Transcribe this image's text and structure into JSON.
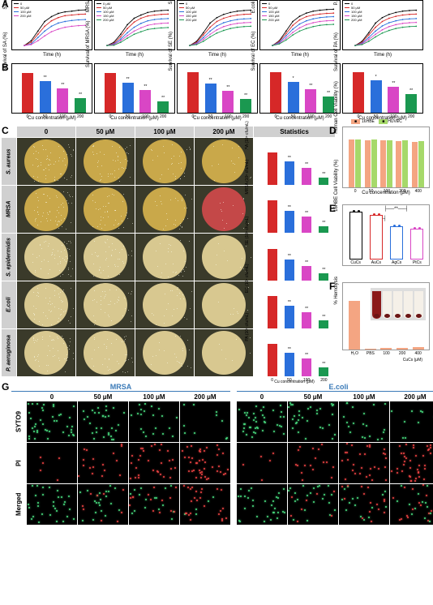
{
  "colors": {
    "c0": "#000000",
    "c50": "#d62828",
    "c100": "#2a6fdb",
    "c150": "#d946c5",
    "c200": "#1a9850"
  },
  "panelA": {
    "label": "A",
    "charts": [
      {
        "ylabel": "S.aureus OD600",
        "xlabel": "Time (h)",
        "legend": [
          "0",
          "50 μM",
          "100 μM",
          "200 μM"
        ],
        "curves": [
          [
            0.05,
            0.2,
            0.5,
            0.8,
            0.95,
            1.05,
            1.1,
            1.12,
            1.15,
            1.16
          ],
          [
            0.05,
            0.15,
            0.4,
            0.65,
            0.82,
            0.92,
            0.98,
            1.0,
            1.02,
            1.03
          ],
          [
            0.05,
            0.1,
            0.3,
            0.5,
            0.65,
            0.75,
            0.8,
            0.83,
            0.85,
            0.86
          ],
          [
            0.05,
            0.08,
            0.2,
            0.35,
            0.48,
            0.56,
            0.62,
            0.65,
            0.67,
            0.68
          ]
        ]
      },
      {
        "ylabel": "MRSA OD600",
        "xlabel": "Time (h)",
        "legend": [
          "0 μM",
          "50 μM",
          "100 μM",
          "150 μM",
          "200 μM"
        ],
        "curves": [
          [
            0.05,
            0.15,
            0.4,
            0.7,
            0.9,
            1.0,
            1.08,
            1.12,
            1.14,
            1.15
          ],
          [
            0.05,
            0.12,
            0.32,
            0.58,
            0.78,
            0.9,
            0.97,
            1.0,
            1.02,
            1.03
          ],
          [
            0.05,
            0.1,
            0.25,
            0.45,
            0.62,
            0.74,
            0.82,
            0.86,
            0.88,
            0.89
          ],
          [
            0.05,
            0.08,
            0.2,
            0.36,
            0.5,
            0.6,
            0.68,
            0.72,
            0.74,
            0.75
          ],
          [
            0.05,
            0.06,
            0.15,
            0.28,
            0.4,
            0.48,
            0.55,
            0.58,
            0.6,
            0.61
          ]
        ]
      },
      {
        "ylabel": "S.epidermidis OD600",
        "xlabel": "Time (h)",
        "legend": [
          "0",
          "50 μM",
          "100 μM",
          "150 μM",
          "200 μM"
        ],
        "curves": [
          [
            0.05,
            0.18,
            0.45,
            0.75,
            0.92,
            1.02,
            1.08,
            1.12,
            1.14,
            1.15
          ],
          [
            0.05,
            0.15,
            0.38,
            0.62,
            0.8,
            0.9,
            0.96,
            1.0,
            1.02,
            1.03
          ],
          [
            0.05,
            0.12,
            0.3,
            0.5,
            0.66,
            0.76,
            0.82,
            0.86,
            0.88,
            0.89
          ],
          [
            0.05,
            0.1,
            0.24,
            0.4,
            0.54,
            0.64,
            0.7,
            0.74,
            0.76,
            0.77
          ],
          [
            0.05,
            0.08,
            0.18,
            0.32,
            0.44,
            0.52,
            0.58,
            0.62,
            0.64,
            0.65
          ]
        ]
      },
      {
        "ylabel": "E.coli OD600",
        "xlabel": "Time (h)",
        "legend": [
          "0",
          "50 μM",
          "100 μM",
          "150 μM",
          "200 μM"
        ],
        "curves": [
          [
            0.05,
            0.2,
            0.5,
            0.8,
            0.96,
            1.06,
            1.12,
            1.15,
            1.17,
            1.18
          ],
          [
            0.05,
            0.18,
            0.42,
            0.68,
            0.85,
            0.95,
            1.0,
            1.03,
            1.05,
            1.06
          ],
          [
            0.05,
            0.15,
            0.35,
            0.56,
            0.72,
            0.82,
            0.88,
            0.92,
            0.94,
            0.95
          ],
          [
            0.05,
            0.12,
            0.28,
            0.46,
            0.6,
            0.7,
            0.76,
            0.8,
            0.82,
            0.83
          ],
          [
            0.05,
            0.1,
            0.22,
            0.38,
            0.5,
            0.58,
            0.64,
            0.68,
            0.7,
            0.71
          ]
        ]
      },
      {
        "ylabel": "P.aeruginosa OD600",
        "xlabel": "Time (h)",
        "legend": [
          "0",
          "50 μM",
          "100 μM",
          "150 μM",
          "200 μM"
        ],
        "curves": [
          [
            0.05,
            0.18,
            0.45,
            0.75,
            0.92,
            1.02,
            1.08,
            1.12,
            1.14,
            1.15
          ],
          [
            0.05,
            0.15,
            0.38,
            0.62,
            0.8,
            0.9,
            0.96,
            1.0,
            1.02,
            1.03
          ],
          [
            0.05,
            0.12,
            0.3,
            0.5,
            0.66,
            0.76,
            0.82,
            0.86,
            0.88,
            0.89
          ],
          [
            0.05,
            0.1,
            0.24,
            0.4,
            0.54,
            0.64,
            0.7,
            0.74,
            0.76,
            0.77
          ],
          [
            0.05,
            0.08,
            0.18,
            0.32,
            0.44,
            0.52,
            0.58,
            0.62,
            0.64,
            0.65
          ]
        ]
      }
    ]
  },
  "panelB": {
    "label": "B",
    "xlabel": "Cu concentration (μM)",
    "categories": [
      "0",
      "50",
      "100",
      "200"
    ],
    "charts": [
      {
        "ylabel": "Survival of SA (%)",
        "values": [
          98,
          78,
          60,
          36
        ],
        "sig": [
          "",
          "**",
          "**",
          "**"
        ]
      },
      {
        "ylabel": "Survival of MRSA (%)",
        "values": [
          98,
          75,
          56,
          28
        ],
        "sig": [
          "",
          "**",
          "**",
          "**"
        ]
      },
      {
        "ylabel": "Survival of SE (%)",
        "values": [
          100,
          72,
          54,
          34
        ],
        "sig": [
          "",
          "**",
          "**",
          "**"
        ]
      },
      {
        "ylabel": "Survival of EC (%)",
        "values": [
          100,
          76,
          58,
          40
        ],
        "sig": [
          "",
          "*",
          "**",
          "**"
        ]
      },
      {
        "ylabel": "Survival of PA (%)",
        "values": [
          100,
          80,
          64,
          46
        ],
        "sig": [
          "",
          "*",
          "**",
          "**"
        ]
      }
    ]
  },
  "panelC": {
    "label": "C",
    "headers": [
      "0",
      "50 μM",
      "100 μM",
      "200 μM",
      "Statistics"
    ],
    "rows": [
      "S. aureus",
      "MRSA",
      "S. epidermidis",
      "E.coli",
      "P. aeruginosa"
    ],
    "plateColors": [
      "#c9a84a",
      "#c9a84a",
      "#d8c890",
      "#d8c890",
      "#d8c890"
    ],
    "mrsaSpecial": "#c44848",
    "stats": [
      {
        "ylabel": "SA (10⁶ cfu/mL)",
        "values": [
          9.2,
          6.5,
          4.8,
          2.1
        ],
        "max": 10
      },
      {
        "ylabel": "MRSA (10⁶ cfu/mL)",
        "values": [
          9.0,
          6.2,
          4.5,
          1.8
        ],
        "max": 10
      },
      {
        "ylabel": "SE (10⁶ cfu/mL)",
        "values": [
          8.8,
          6.0,
          4.2,
          2.0
        ],
        "max": 10
      },
      {
        "ylabel": "EC (10⁶ cfu/mL)",
        "values": [
          9.1,
          6.4,
          4.6,
          2.3
        ],
        "max": 10
      },
      {
        "ylabel": "PA (10⁶ cfu/mL)",
        "values": [
          9.0,
          6.6,
          4.9,
          2.5
        ],
        "max": 10
      }
    ]
  },
  "panelD": {
    "label": "D",
    "ylabel": "Human Cell Viability (%)",
    "xlabel": "Cu concentration (μM)",
    "legend": [
      "16HBE",
      "HUVEC"
    ],
    "legendColors": [
      "#f4a582",
      "#a6d96a"
    ],
    "categories": [
      "0",
      "50",
      "100",
      "200",
      "400"
    ],
    "values16HBE": [
      98,
      97,
      96,
      95,
      94
    ],
    "valuesHUVEC": [
      99,
      98,
      97,
      96,
      95
    ]
  },
  "panelE": {
    "label": "E",
    "ylabel": "16HBE Cell Viability (%)",
    "categories": [
      "CuCs",
      "AuCs",
      "AgCs",
      "PtCs"
    ],
    "values": [
      98,
      92,
      68,
      64
    ],
    "colors": [
      "#000",
      "#d62828",
      "#2a6fdb",
      "#d946c5"
    ],
    "sig": "**"
  },
  "panelF": {
    "label": "F",
    "ylabel": "% Hemolysis",
    "categories": [
      "H₂O",
      "PBS",
      "100",
      "200",
      "400"
    ],
    "subLabel": "CuCs (μM)",
    "values": [
      100,
      2,
      3,
      4,
      5
    ],
    "barColor": "#f4a582"
  },
  "panelG": {
    "label": "G",
    "sections": [
      "MRSA",
      "E.coli"
    ],
    "concs": [
      "0",
      "50 μM",
      "100 μM",
      "200 μM"
    ],
    "rows": [
      "SYTO9",
      "PI",
      "Merged"
    ],
    "greenColor": "#4ade80",
    "redColor": "#ef4444"
  }
}
